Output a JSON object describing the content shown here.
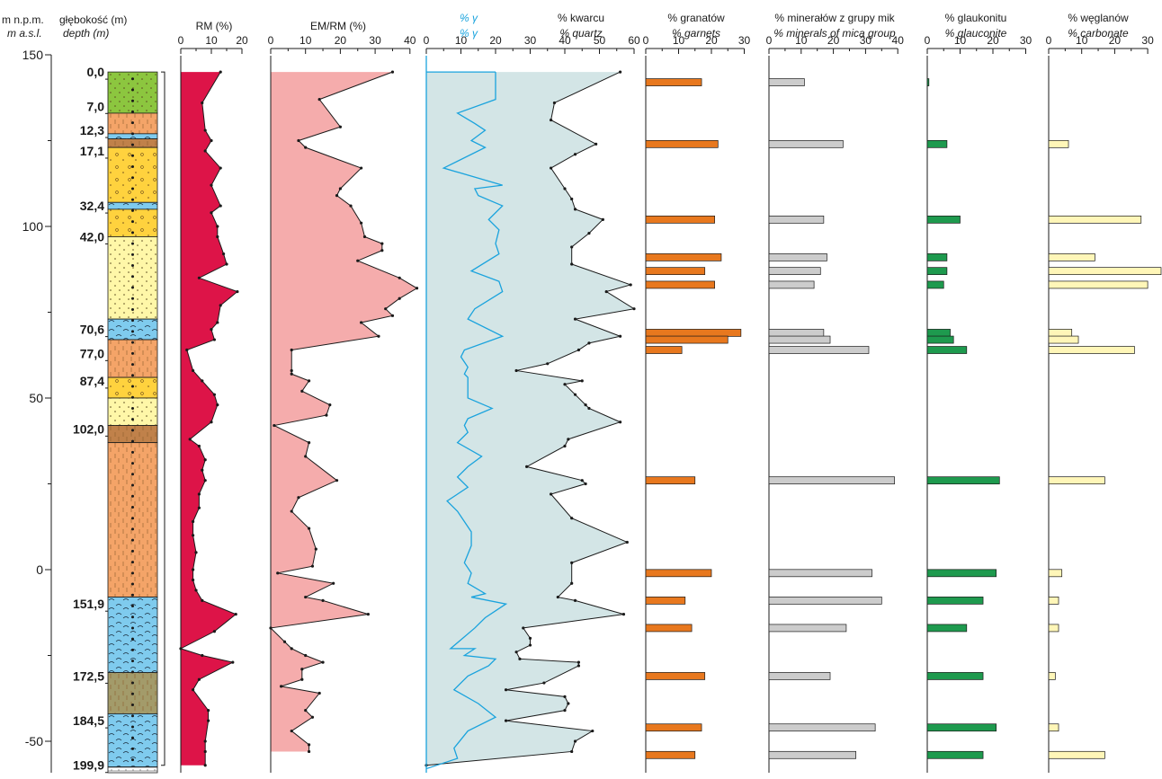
{
  "headers": {
    "elevation": [
      "m n.p.m.",
      "m a.s.l."
    ],
    "depth": [
      "głębokość (m)",
      "depth (m)"
    ],
    "rm": [
      "RM (%)"
    ],
    "emrm": [
      "EM/RM (%)"
    ],
    "gamma": [
      "% γ",
      "% γ"
    ],
    "quartz": [
      "% kwarcu",
      "% quartz"
    ],
    "garnet": [
      "% granatów",
      "% garnets"
    ],
    "mica": [
      "% minerałów z grupy mik",
      "% minerals of mica group"
    ],
    "glauconite": [
      "% glaukonitu",
      "% glauconite"
    ],
    "carbonate": [
      "% węglanów",
      "% carbonate"
    ]
  },
  "colors": {
    "rm": "#dd1448",
    "emrm": "#f5acac",
    "gamma_line": "#1aa3dd",
    "quartz_fill": "#d3e5e6",
    "garnet": "#e8781e",
    "mica": "#cccccc",
    "glauconite": "#1e9a4e",
    "carbonate": "#fff6b8"
  },
  "chart_data": {
    "type": "well-log",
    "elevation_axis": {
      "range": [
        -60,
        150
      ],
      "ticks": [
        150,
        100,
        50,
        0,
        -50
      ]
    },
    "depth_labels": [
      "0,0",
      "7,0",
      "12,3",
      "17,1",
      "32,4",
      "42,0",
      "70,6",
      "77,0",
      "87,4",
      "102,0",
      "151,9",
      "172,5",
      "184,5",
      "199,9"
    ],
    "depth_label_elev": [
      145,
      135,
      128,
      122,
      106,
      97,
      70,
      63,
      55,
      41,
      -10,
      -31,
      -44,
      -57
    ],
    "lithology": [
      {
        "top": 145,
        "bottom": 133,
        "pattern": "green"
      },
      {
        "top": 133,
        "bottom": 127,
        "pattern": "orange"
      },
      {
        "top": 127,
        "bottom": 125.5,
        "pattern": "blue"
      },
      {
        "top": 125.5,
        "bottom": 123,
        "pattern": "brown"
      },
      {
        "top": 123,
        "bottom": 107,
        "pattern": "yellow"
      },
      {
        "top": 107,
        "bottom": 105,
        "pattern": "blue"
      },
      {
        "top": 105,
        "bottom": 97,
        "pattern": "yellow"
      },
      {
        "top": 97,
        "bottom": 73,
        "pattern": "paleyellow"
      },
      {
        "top": 73,
        "bottom": 67,
        "pattern": "blue"
      },
      {
        "top": 67,
        "bottom": 56,
        "pattern": "orange"
      },
      {
        "top": 56,
        "bottom": 50,
        "pattern": "yellow"
      },
      {
        "top": 50,
        "bottom": 42,
        "pattern": "paleyellow"
      },
      {
        "top": 42,
        "bottom": 37,
        "pattern": "brown"
      },
      {
        "top": 37,
        "bottom": -8,
        "pattern": "orange"
      },
      {
        "top": -8,
        "bottom": -30,
        "pattern": "blue"
      },
      {
        "top": -30,
        "bottom": -42,
        "pattern": "olive"
      },
      {
        "top": -42,
        "bottom": -57.5,
        "pattern": "blue"
      },
      {
        "top": -57.5,
        "bottom": -61,
        "pattern": "grid"
      }
    ],
    "rm": {
      "range": [
        0,
        20
      ],
      "ticks": [
        0,
        10,
        20
      ],
      "points": [
        [
          13,
          145
        ],
        [
          7,
          136
        ],
        [
          8,
          128
        ],
        [
          10,
          125
        ],
        [
          8,
          122
        ],
        [
          13,
          117
        ],
        [
          10,
          112
        ],
        [
          13,
          106
        ],
        [
          10,
          104
        ],
        [
          12,
          100
        ],
        [
          12,
          97
        ],
        [
          14,
          92
        ],
        [
          15,
          89
        ],
        [
          6,
          85
        ],
        [
          18.5,
          81
        ],
        [
          13,
          77
        ],
        [
          12,
          72
        ],
        [
          10,
          70
        ],
        [
          11,
          67
        ],
        [
          2,
          64
        ],
        [
          4,
          58
        ],
        [
          7,
          55
        ],
        [
          11,
          51
        ],
        [
          12,
          48
        ],
        [
          10,
          43
        ],
        [
          3,
          38
        ],
        [
          6,
          36
        ],
        [
          8,
          32
        ],
        [
          7,
          29
        ],
        [
          8,
          26
        ],
        [
          6,
          22
        ],
        [
          6,
          18
        ],
        [
          4,
          14
        ],
        [
          4,
          10
        ],
        [
          5,
          5
        ],
        [
          4,
          0
        ],
        [
          4,
          -3
        ],
        [
          5,
          -6
        ],
        [
          7,
          -9
        ],
        [
          18,
          -13
        ],
        [
          11,
          -18
        ],
        [
          0,
          -23
        ],
        [
          7,
          -25
        ],
        [
          17,
          -27
        ],
        [
          6,
          -32
        ],
        [
          4,
          -35
        ],
        [
          9,
          -41
        ],
        [
          9,
          -44
        ],
        [
          8,
          -50
        ],
        [
          8,
          -53
        ],
        [
          8,
          -57
        ]
      ]
    },
    "emrm": {
      "range": [
        0,
        40
      ],
      "ticks": [
        0,
        10,
        20,
        30,
        40
      ],
      "points": [
        [
          35,
          145
        ],
        [
          14,
          137
        ],
        [
          20,
          129
        ],
        [
          8,
          125
        ],
        [
          10,
          123
        ],
        [
          26,
          117
        ],
        [
          20,
          111
        ],
        [
          19,
          109
        ],
        [
          23,
          106
        ],
        [
          26,
          101
        ],
        [
          27,
          97
        ],
        [
          32,
          95
        ],
        [
          32,
          93
        ],
        [
          25,
          90
        ],
        [
          37,
          85
        ],
        [
          42,
          82
        ],
        [
          37,
          79
        ],
        [
          33,
          76
        ],
        [
          35,
          74
        ],
        [
          26,
          72
        ],
        [
          31,
          68
        ],
        [
          6,
          64
        ],
        [
          6,
          58
        ],
        [
          6,
          57
        ],
        [
          11,
          55
        ],
        [
          9,
          52
        ],
        [
          17,
          48
        ],
        [
          16,
          45
        ],
        [
          1,
          42
        ],
        [
          11,
          37
        ],
        [
          10,
          33
        ],
        [
          19,
          26
        ],
        [
          8,
          21
        ],
        [
          6,
          17
        ],
        [
          11,
          12
        ],
        [
          13,
          6
        ],
        [
          12,
          1
        ],
        [
          2,
          -1
        ],
        [
          18,
          -4
        ],
        [
          10,
          -8
        ],
        [
          15,
          -9
        ],
        [
          28,
          -13
        ],
        [
          0,
          -17
        ],
        [
          4,
          -21
        ],
        [
          6,
          -23
        ],
        [
          10,
          -25
        ],
        [
          15,
          -27
        ],
        [
          9,
          -29
        ],
        [
          9,
          -32
        ],
        [
          3,
          -34
        ],
        [
          14,
          -36
        ],
        [
          10,
          -41
        ],
        [
          12,
          -43
        ],
        [
          6,
          -47
        ],
        [
          11,
          -51
        ],
        [
          11,
          -53
        ]
      ]
    },
    "gamma": {
      "range": [
        0,
        60
      ],
      "ticks": [
        0,
        10,
        20,
        30
      ],
      "points": [
        [
          20,
          145
        ],
        [
          20,
          137
        ],
        [
          9,
          133
        ],
        [
          14,
          130
        ],
        [
          17,
          128
        ],
        [
          13,
          125
        ],
        [
          17,
          123
        ],
        [
          5,
          117
        ],
        [
          22,
          112
        ],
        [
          14,
          111
        ],
        [
          15,
          109
        ],
        [
          22,
          106
        ],
        [
          18,
          102
        ],
        [
          21,
          99
        ],
        [
          20,
          95
        ],
        [
          21,
          92
        ],
        [
          13,
          87
        ],
        [
          21,
          84
        ],
        [
          22,
          81
        ],
        [
          14,
          76
        ],
        [
          12,
          73
        ],
        [
          22,
          68
        ],
        [
          11,
          64
        ],
        [
          10,
          62
        ],
        [
          12,
          59
        ],
        [
          11,
          57
        ],
        [
          12,
          56
        ],
        [
          12,
          53
        ],
        [
          12,
          50
        ],
        [
          19,
          47
        ],
        [
          12,
          44
        ],
        [
          11,
          42
        ],
        [
          12,
          40
        ],
        [
          9,
          37
        ],
        [
          16,
          33
        ],
        [
          12,
          30
        ],
        [
          9,
          27
        ],
        [
          12,
          24
        ],
        [
          6,
          20
        ],
        [
          9,
          17
        ],
        [
          13,
          11
        ],
        [
          13,
          7
        ],
        [
          11,
          2
        ],
        [
          13,
          -1
        ],
        [
          12,
          -4
        ],
        [
          17,
          -7
        ],
        [
          13,
          -8
        ],
        [
          23,
          -10
        ],
        [
          20,
          -12
        ],
        [
          17,
          -14
        ],
        [
          14,
          -17
        ],
        [
          7,
          -23
        ],
        [
          14,
          -23
        ],
        [
          11,
          -25
        ],
        [
          20,
          -26
        ],
        [
          18,
          -28
        ],
        [
          12,
          -31
        ],
        [
          8,
          -35
        ],
        [
          15,
          -39
        ],
        [
          20,
          -43
        ],
        [
          12,
          -47
        ],
        [
          8,
          -52
        ],
        [
          9,
          -55
        ],
        [
          0,
          -58
        ]
      ]
    },
    "quartz": {
      "range": [
        0,
        60
      ],
      "ticks": [
        0,
        10,
        20,
        30,
        40,
        50,
        60
      ],
      "points": [
        [
          56,
          145
        ],
        [
          37,
          136
        ],
        [
          36,
          131
        ],
        [
          49,
          124
        ],
        [
          43,
          121
        ],
        [
          36,
          117
        ],
        [
          40,
          111
        ],
        [
          42,
          108
        ],
        [
          43,
          105
        ],
        [
          51,
          102
        ],
        [
          47,
          98
        ],
        [
          42,
          94
        ],
        [
          42,
          89
        ],
        [
          59,
          83
        ],
        [
          52,
          81
        ],
        [
          60,
          76
        ],
        [
          43,
          73
        ],
        [
          56,
          68
        ],
        [
          47,
          66
        ],
        [
          44,
          64
        ],
        [
          35,
          60
        ],
        [
          26,
          58
        ],
        [
          45,
          55
        ],
        [
          40,
          54
        ],
        [
          43,
          51
        ],
        [
          46,
          48
        ],
        [
          47,
          47
        ],
        [
          56,
          43
        ],
        [
          41,
          38
        ],
        [
          40,
          36
        ],
        [
          29,
          30
        ],
        [
          45,
          26
        ],
        [
          46,
          25
        ],
        [
          36,
          22
        ],
        [
          42,
          15
        ],
        [
          58,
          8
        ],
        [
          42,
          2
        ],
        [
          42,
          -4
        ],
        [
          38,
          -8
        ],
        [
          43,
          -9
        ],
        [
          57,
          -13
        ],
        [
          28,
          -17
        ],
        [
          30,
          -20
        ],
        [
          30,
          -22
        ],
        [
          26,
          -24
        ],
        [
          27,
          -26
        ],
        [
          44,
          -27
        ],
        [
          44,
          -28
        ],
        [
          34,
          -33
        ],
        [
          23,
          -35
        ],
        [
          40,
          -37
        ],
        [
          41,
          -39
        ],
        [
          40,
          -41
        ],
        [
          23,
          -44
        ],
        [
          48,
          -47
        ],
        [
          43,
          -50
        ],
        [
          42,
          -53
        ],
        [
          0,
          -57
        ]
      ]
    },
    "garnet": {
      "range": [
        0,
        30
      ],
      "ticks": [
        0,
        10,
        20,
        30
      ],
      "bars": [
        [
          17,
          142
        ],
        [
          22,
          124
        ],
        [
          21,
          102
        ],
        [
          23,
          91
        ],
        [
          18,
          87
        ],
        [
          21,
          83
        ],
        [
          29,
          69
        ],
        [
          25,
          67
        ],
        [
          11,
          64
        ],
        [
          15,
          26
        ],
        [
          20,
          -1
        ],
        [
          12,
          -9
        ],
        [
          14,
          -17
        ],
        [
          18,
          -31
        ],
        [
          17,
          -46
        ],
        [
          15,
          -54
        ]
      ]
    },
    "mica": {
      "range": [
        0,
        40
      ],
      "ticks": [
        0,
        10,
        20,
        30,
        40
      ],
      "bars": [
        [
          11,
          142
        ],
        [
          23,
          124
        ],
        [
          17,
          102
        ],
        [
          18,
          91
        ],
        [
          16,
          87
        ],
        [
          14,
          83
        ],
        [
          17,
          69
        ],
        [
          19,
          67
        ],
        [
          31,
          64
        ],
        [
          39,
          26
        ],
        [
          32,
          -1
        ],
        [
          35,
          -9
        ],
        [
          24,
          -17
        ],
        [
          19,
          -31
        ],
        [
          33,
          -46
        ],
        [
          27,
          -54
        ]
      ]
    },
    "glauconite": {
      "range": [
        0,
        30
      ],
      "ticks": [
        0,
        10,
        20,
        30
      ],
      "bars": [
        [
          0.5,
          142
        ],
        [
          6,
          124
        ],
        [
          10,
          102
        ],
        [
          6,
          91
        ],
        [
          6,
          87
        ],
        [
          5,
          83
        ],
        [
          7,
          69
        ],
        [
          8,
          67
        ],
        [
          12,
          64
        ],
        [
          22,
          26
        ],
        [
          21,
          -1
        ],
        [
          17,
          -9
        ],
        [
          12,
          -17
        ],
        [
          17,
          -31
        ],
        [
          21,
          -46
        ],
        [
          17,
          -54
        ]
      ]
    },
    "carbonate": {
      "range": [
        0,
        30
      ],
      "ticks": [
        0,
        10,
        20,
        30
      ],
      "bars": [
        [
          6,
          124
        ],
        [
          28,
          102
        ],
        [
          14,
          91
        ],
        [
          37,
          87
        ],
        [
          30,
          83
        ],
        [
          7,
          69
        ],
        [
          9,
          67
        ],
        [
          26,
          64
        ],
        [
          17,
          26
        ],
        [
          4,
          -1
        ],
        [
          3,
          -9
        ],
        [
          3,
          -17
        ],
        [
          2,
          -31
        ],
        [
          3,
          -46
        ],
        [
          17,
          -54
        ]
      ]
    }
  }
}
